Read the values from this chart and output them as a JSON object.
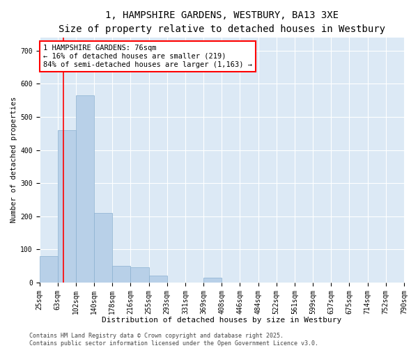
{
  "title": "1, HAMPSHIRE GARDENS, WESTBURY, BA13 3XE",
  "subtitle": "Size of property relative to detached houses in Westbury",
  "xlabel": "Distribution of detached houses by size in Westbury",
  "ylabel": "Number of detached properties",
  "bar_color": "#b8d0e8",
  "bar_edge_color": "#8ab0d0",
  "background_color": "#dce9f5",
  "grid_color": "#ffffff",
  "bins": [
    "25sqm",
    "63sqm",
    "102sqm",
    "140sqm",
    "178sqm",
    "216sqm",
    "255sqm",
    "293sqm",
    "331sqm",
    "369sqm",
    "408sqm",
    "446sqm",
    "484sqm",
    "522sqm",
    "561sqm",
    "599sqm",
    "637sqm",
    "675sqm",
    "714sqm",
    "752sqm",
    "790sqm"
  ],
  "values": [
    80,
    460,
    565,
    210,
    50,
    45,
    20,
    0,
    0,
    15,
    0,
    0,
    0,
    0,
    0,
    0,
    0,
    0,
    0,
    0
  ],
  "ylim": [
    0,
    740
  ],
  "yticks": [
    0,
    100,
    200,
    300,
    400,
    500,
    600,
    700
  ],
  "bin_edges_sqm": [
    25,
    63,
    102,
    140,
    178,
    216,
    255,
    293,
    331,
    369,
    408,
    446,
    484,
    522,
    561,
    599,
    637,
    675,
    714,
    752,
    790
  ],
  "property_sqm": 76,
  "annotation_text": "1 HAMPSHIRE GARDENS: 76sqm\n← 16% of detached houses are smaller (219)\n84% of semi-detached houses are larger (1,163) →",
  "footer": "Contains HM Land Registry data © Crown copyright and database right 2025.\nContains public sector information licensed under the Open Government Licence v3.0.",
  "title_fontsize": 10,
  "subtitle_fontsize": 9,
  "xlabel_fontsize": 8,
  "ylabel_fontsize": 7.5,
  "tick_fontsize": 7,
  "annotation_fontsize": 7.5,
  "footer_fontsize": 6
}
